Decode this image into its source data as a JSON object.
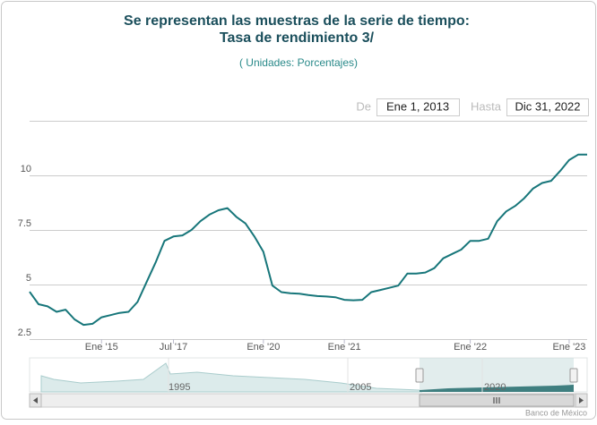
{
  "chart_data": {
    "type": "line",
    "title": "Se representan las muestras de la serie de tiempo:",
    "title2": "Tasa de rendimiento 3/",
    "subtitle": "( Unidades:  Porcentajes)",
    "range_from_label": "De",
    "range_from": "Ene 1, 2013",
    "range_to_label": "Hasta",
    "range_to": "Dic 31, 2022",
    "categories": [
      null,
      null,
      null,
      null,
      null,
      null,
      null,
      null,
      "Ene '15",
      null,
      null,
      null,
      null,
      null,
      null,
      null,
      "Jul '17",
      null,
      null,
      null,
      null,
      null,
      null,
      null,
      null,
      null,
      "Ene '20",
      null,
      null,
      null,
      null,
      null,
      null,
      null,
      null,
      "Ene '21",
      null,
      null,
      null,
      null,
      null,
      null,
      null,
      null,
      null,
      null,
      null,
      null,
      null,
      "Ene '22",
      null,
      null,
      null,
      null,
      null,
      null,
      null,
      null,
      null,
      null,
      "Ene '23",
      null,
      null
    ],
    "series": [
      {
        "name": "Tasa de rendimiento 3/",
        "color": "#17767a",
        "values": [
          4.67,
          4.1,
          4.0,
          3.75,
          3.85,
          3.4,
          3.15,
          3.2,
          3.5,
          3.6,
          3.7,
          3.75,
          4.2,
          5.1,
          6.0,
          7.0,
          7.2,
          7.25,
          7.5,
          7.9,
          8.2,
          8.4,
          8.5,
          8.1,
          7.8,
          7.2,
          6.5,
          4.95,
          4.65,
          4.6,
          4.58,
          4.52,
          4.47,
          4.45,
          4.42,
          4.3,
          4.28,
          4.3,
          4.65,
          4.75,
          4.85,
          4.95,
          5.5,
          5.5,
          5.55,
          5.75,
          6.2,
          6.4,
          6.6,
          7.0,
          7.0,
          7.1,
          7.9,
          8.35,
          8.6,
          8.95,
          9.4,
          9.65,
          9.75,
          10.2,
          10.7,
          10.95,
          10.95
        ]
      }
    ],
    "ylim": [
      2.5,
      12.5
    ],
    "yticks": [
      2.5,
      5,
      7.5,
      10
    ],
    "grid": true,
    "navigator_labels": [
      "1995",
      "2005",
      "2020"
    ],
    "credit": "Banco de México"
  }
}
